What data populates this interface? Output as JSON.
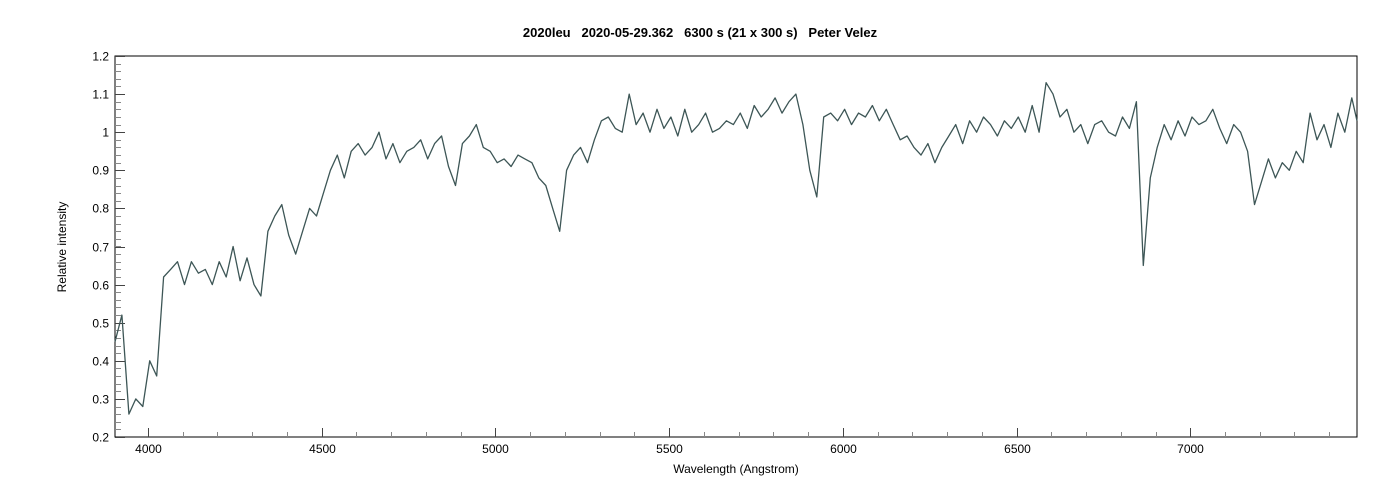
{
  "chart_data": {
    "type": "line",
    "title": "2020leu   2020-05-29.362   6300 s (21 x 300 s)   Peter Velez",
    "xlabel": "Wavelength (Angstrom)",
    "ylabel": "Relative intensity",
    "xlim": [
      3905,
      7480
    ],
    "ylim": [
      0.2,
      1.2
    ],
    "xticks": [
      4000,
      4500,
      5000,
      5500,
      6000,
      6500,
      7000
    ],
    "yticks": [
      0.2,
      0.3,
      0.4,
      0.5,
      0.6,
      0.7,
      0.8,
      0.9,
      1,
      1.1,
      1.2
    ],
    "grid": false,
    "line_color": "#3d5656",
    "series": [
      {
        "name": "spectrum",
        "x_start": 3905,
        "x_step": 20,
        "values": [
          0.45,
          0.52,
          0.26,
          0.3,
          0.28,
          0.4,
          0.36,
          0.62,
          0.64,
          0.66,
          0.6,
          0.66,
          0.63,
          0.64,
          0.6,
          0.66,
          0.62,
          0.7,
          0.61,
          0.67,
          0.6,
          0.57,
          0.74,
          0.78,
          0.81,
          0.73,
          0.68,
          0.74,
          0.8,
          0.78,
          0.84,
          0.9,
          0.94,
          0.88,
          0.95,
          0.97,
          0.94,
          0.96,
          1.0,
          0.93,
          0.97,
          0.92,
          0.95,
          0.96,
          0.98,
          0.93,
          0.97,
          0.99,
          0.91,
          0.86,
          0.97,
          0.99,
          1.02,
          0.96,
          0.95,
          0.92,
          0.93,
          0.91,
          0.94,
          0.93,
          0.92,
          0.88,
          0.86,
          0.8,
          0.74,
          0.9,
          0.94,
          0.96,
          0.92,
          0.98,
          1.03,
          1.04,
          1.01,
          1.0,
          1.1,
          1.02,
          1.05,
          1.0,
          1.06,
          1.01,
          1.04,
          0.99,
          1.06,
          1.0,
          1.02,
          1.05,
          1.0,
          1.01,
          1.03,
          1.02,
          1.05,
          1.01,
          1.07,
          1.04,
          1.06,
          1.09,
          1.05,
          1.08,
          1.1,
          1.02,
          0.9,
          0.83,
          1.04,
          1.05,
          1.03,
          1.06,
          1.02,
          1.05,
          1.04,
          1.07,
          1.03,
          1.06,
          1.02,
          0.98,
          0.99,
          0.96,
          0.94,
          0.97,
          0.92,
          0.96,
          0.99,
          1.02,
          0.97,
          1.03,
          1.0,
          1.04,
          1.02,
          0.99,
          1.03,
          1.01,
          1.04,
          1.0,
          1.07,
          1.0,
          1.13,
          1.1,
          1.04,
          1.06,
          1.0,
          1.02,
          0.97,
          1.02,
          1.03,
          1.0,
          0.99,
          1.04,
          1.01,
          1.08,
          0.65,
          0.88,
          0.96,
          1.02,
          0.98,
          1.03,
          0.99,
          1.04,
          1.02,
          1.03,
          1.06,
          1.01,
          0.97,
          1.02,
          1.0,
          0.95,
          0.81,
          0.87,
          0.93,
          0.88,
          0.92,
          0.9,
          0.95,
          0.92,
          1.05,
          0.98,
          1.02,
          0.96,
          1.05,
          1.0,
          1.09,
          1.03
        ]
      }
    ]
  }
}
